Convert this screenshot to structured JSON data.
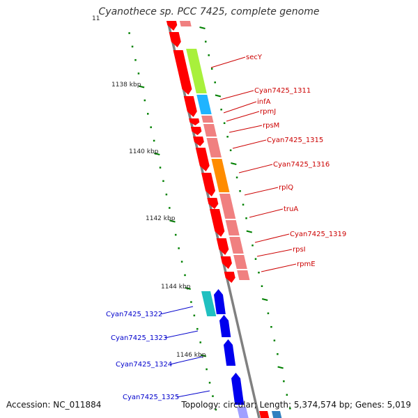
{
  "title": "Cyanothece sp. PCC 7425, complete genome",
  "footer": {
    "accession": "Accession: NC_011884",
    "topology": "Topology: circular; Length: 5,374,574 bp; Genes: 5,019"
  },
  "ticks": [
    "11",
    "1138 kbp",
    "1140 kbp",
    "1142 kbp",
    "1144 kbp",
    "1146 kbp"
  ],
  "colors": {
    "forward_gene": "#ff0000",
    "forward_lane": "#f08080",
    "reverse_gene": "#0000ee",
    "reverse_other": "#20c0c0",
    "label_forward": "#cc0000",
    "label_reverse": "#0000cc",
    "backbone": "#808080",
    "tick": "#008000"
  },
  "forward_labels": [
    "secY",
    "Cyan7425_1311",
    "infA",
    "rpmJ",
    "rpsM",
    "Cyan7425_1315",
    "Cyan7425_1316",
    "rplQ",
    "truA",
    "Cyan7425_1319",
    "rpsI",
    "rpmE"
  ],
  "reverse_labels": [
    "Cyan7425_1322",
    "Cyan7425_1323",
    "Cyan7425_1324",
    "Cyan7425_1325"
  ]
}
